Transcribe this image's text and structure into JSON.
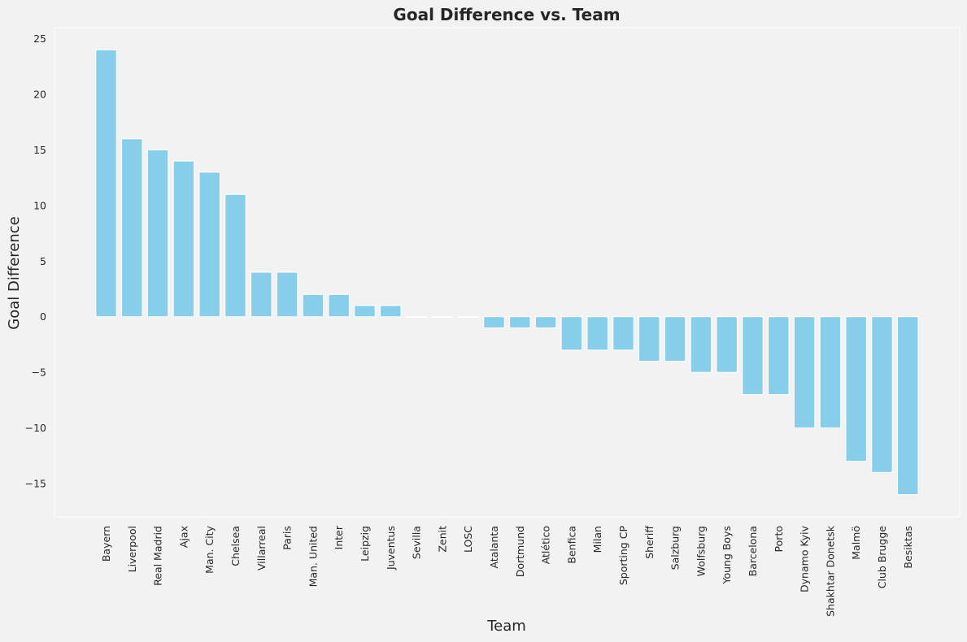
{
  "chart_data": {
    "type": "bar",
    "title": "Goal Difference vs. Team",
    "xlabel": "Team",
    "ylabel": "Goal Difference",
    "categories": [
      "Bayern",
      "Liverpool",
      "Real Madrid",
      "Ajax",
      "Man. City",
      "Chelsea",
      "Villarreal",
      "Paris",
      "Man. United",
      "Inter",
      "Leipzig",
      "Juventus",
      "Sevilla",
      "Zenit",
      "LOSC",
      "Atalanta",
      "Dortmund",
      "Atlético",
      "Benfica",
      "Milan",
      "Sporting CP",
      "Sheriff",
      "Salzburg",
      "Wolfsburg",
      "Young Boys",
      "Barcelona",
      "Porto",
      "Dynamo Kyiv",
      "Shakhtar Donetsk",
      "Malmö",
      "Club Brugge",
      "Besiktas"
    ],
    "values": [
      24,
      16,
      15,
      14,
      13,
      11,
      4,
      4,
      2,
      2,
      1,
      1,
      0,
      0,
      0,
      -1,
      -1,
      -1,
      -3,
      -3,
      -3,
      -4,
      -4,
      -5,
      -5,
      -7,
      -7,
      -10,
      -10,
      -13,
      -14,
      -16
    ],
    "yticks": [
      -15,
      -10,
      -5,
      0,
      5,
      10,
      15,
      20,
      25
    ],
    "ylim": [
      -18,
      26
    ],
    "grid": false,
    "colors": {
      "bar": "#87ceeb",
      "background": "#f2f2f2",
      "text": "#262626"
    }
  }
}
